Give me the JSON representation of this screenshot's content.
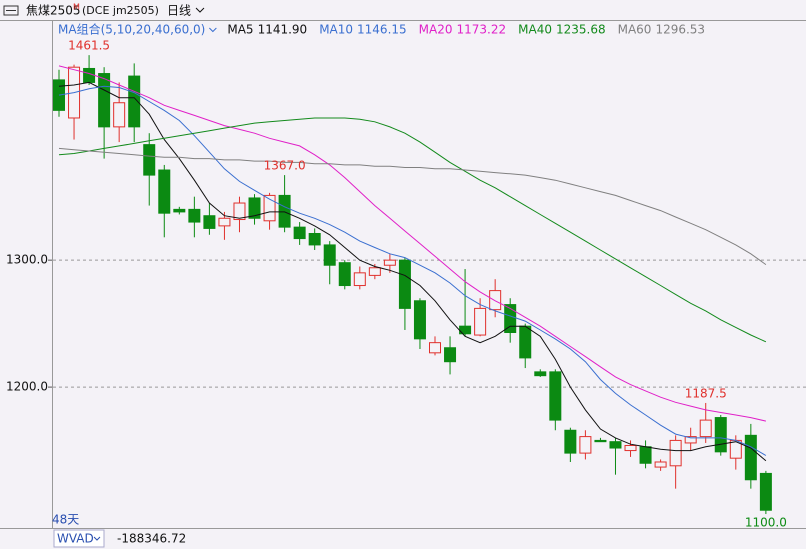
{
  "header": {
    "symbol": "焦煤2505",
    "badge": "M",
    "code": "(DCE jm2505)",
    "period": "日线"
  },
  "chart_data": {
    "type": "candlestick",
    "legend_title": "MA组合(5,10,20,40,60,0)",
    "open": [
      1442,
      1412,
      1451,
      1447,
      1405,
      1445,
      1391,
      1371,
      1340,
      1340,
      1335,
      1327,
      1332,
      1349,
      1331,
      1351,
      1326,
      1321,
      1312,
      1298,
      1280,
      1288,
      1296,
      1300,
      1268,
      1227,
      1231,
      1248,
      1241,
      1261,
      1265,
      1248,
      1212,
      1212,
      1166,
      1148,
      1158,
      1157,
      1150,
      1153,
      1137,
      1138,
      1156,
      1161,
      1176,
      1144,
      1162,
      1132
    ],
    "high": [
      1450,
      1454,
      1461.5,
      1452,
      1440,
      1455,
      1400,
      1375,
      1342,
      1350,
      1345,
      1338,
      1350,
      1352,
      1353,
      1367,
      1330,
      1325,
      1315,
      1300,
      1295,
      1297,
      1305,
      1302,
      1270,
      1240,
      1240,
      1293,
      1270,
      1285,
      1270,
      1250,
      1214,
      1214,
      1168,
      1166,
      1160,
      1160,
      1158,
      1158,
      1143,
      1162,
      1168,
      1187.5,
      1178,
      1162,
      1171,
      1134
    ],
    "low": [
      1413,
      1395,
      1438,
      1380,
      1393,
      1393,
      1343,
      1318,
      1336,
      1318,
      1320,
      1316,
      1322,
      1328,
      1324,
      1322,
      1312,
      1308,
      1281,
      1277,
      1277,
      1285,
      1290,
      1245,
      1230,
      1225,
      1210,
      1240,
      1240,
      1255,
      1235,
      1215,
      1208,
      1166,
      1141,
      1143,
      1157,
      1131,
      1145,
      1136,
      1134,
      1120,
      1150,
      1156,
      1146,
      1135,
      1120,
      1100
    ],
    "close": [
      1418,
      1452,
      1440,
      1405,
      1424,
      1405,
      1367,
      1337,
      1338,
      1330,
      1325,
      1333,
      1345,
      1333,
      1351,
      1326,
      1317,
      1312,
      1296,
      1280,
      1290,
      1294,
      1300,
      1262,
      1238,
      1235,
      1220,
      1242,
      1262,
      1276,
      1243,
      1223,
      1209,
      1174,
      1148,
      1161,
      1157,
      1152,
      1154,
      1140,
      1141,
      1158,
      1161,
      1174,
      1149,
      1158,
      1127,
      1103
    ],
    "up_color": "#e0302c",
    "down_color": "#0b8a12",
    "series": [
      {
        "name": "MA5",
        "color": "#111111",
        "legend_value": "1141.90",
        "values": [
          1437,
          1438,
          1440,
          1434,
          1428,
          1428,
          1415,
          1395,
          1380,
          1363,
          1345,
          1335,
          1333,
          1335,
          1338,
          1338,
          1333,
          1327,
          1320,
          1310,
          1300,
          1295,
          1292,
          1288,
          1280,
          1268,
          1253,
          1240,
          1235,
          1240,
          1248,
          1248,
          1240,
          1222,
          1200,
          1182,
          1167,
          1160,
          1155,
          1153,
          1151,
          1150,
          1150,
          1153,
          1155,
          1157,
          1152,
          1141.9
        ]
      },
      {
        "name": "MA10",
        "color": "#3a6fd0",
        "legend_value": "1146.15",
        "values": [
          1430,
          1432,
          1435,
          1437,
          1436,
          1432,
          1425,
          1418,
          1410,
          1398,
          1385,
          1372,
          1362,
          1355,
          1348,
          1342,
          1337,
          1333,
          1328,
          1322,
          1315,
          1310,
          1305,
          1302,
          1296,
          1290,
          1282,
          1272,
          1265,
          1260,
          1256,
          1252,
          1245,
          1238,
          1230,
          1220,
          1206,
          1195,
          1186,
          1178,
          1170,
          1163,
          1160,
          1160,
          1160,
          1158,
          1153,
          1146.15
        ]
      },
      {
        "name": "MA20",
        "color": "#e020c8",
        "legend_value": "1173.22",
        "values": [
          1453,
          1450,
          1447,
          1443,
          1438,
          1433,
          1428,
          1422,
          1418,
          1414,
          1410,
          1406,
          1403,
          1400,
          1396,
          1393,
          1390,
          1383,
          1375,
          1365,
          1354,
          1343,
          1333,
          1323,
          1313,
          1303,
          1293,
          1283,
          1275,
          1268,
          1262,
          1255,
          1248,
          1240,
          1232,
          1224,
          1216,
          1208,
          1202,
          1197,
          1192,
          1188,
          1185,
          1182,
          1180,
          1178,
          1176,
          1173.22
        ]
      },
      {
        "name": "MA40",
        "color": "#138a1c",
        "legend_value": "1235.68",
        "values": [
          1383,
          1384,
          1386,
          1388,
          1390,
          1392,
          1394,
          1396,
          1398,
          1400,
          1402,
          1404,
          1406,
          1408,
          1409,
          1410,
          1411,
          1412,
          1412,
          1412,
          1411,
          1409,
          1405,
          1400,
          1393,
          1385,
          1377,
          1370,
          1363,
          1357,
          1350,
          1343,
          1336,
          1329,
          1322,
          1315,
          1308,
          1301,
          1294,
          1287,
          1280,
          1273,
          1266,
          1260,
          1253,
          1247,
          1241,
          1235.68
        ]
      },
      {
        "name": "MA60",
        "color": "#808080",
        "legend_value": "1296.53",
        "values": [
          1388,
          1387,
          1386,
          1385,
          1384,
          1383,
          1382,
          1381,
          1381,
          1380,
          1380,
          1379,
          1379,
          1378,
          1378,
          1377,
          1377,
          1376,
          1376,
          1375,
          1375,
          1374,
          1374,
          1373,
          1373,
          1372,
          1372,
          1371,
          1370,
          1369,
          1368,
          1367,
          1365,
          1363,
          1360,
          1357,
          1354,
          1351,
          1347,
          1343,
          1339,
          1334,
          1329,
          1324,
          1318,
          1312,
          1305,
          1296.53
        ]
      }
    ],
    "annotations": [
      {
        "value": 1461.5,
        "label": "1461.5"
      },
      {
        "value": 1367,
        "label": "1367.0"
      },
      {
        "value": 1187.5,
        "label": "1187.5"
      },
      {
        "value": 1100,
        "label": "1100.0"
      }
    ],
    "ylim": [
      1089,
      1475
    ],
    "yticks": [
      {
        "value": 1200,
        "label": "1200.0"
      },
      {
        "value": 1300,
        "label": "1300.0"
      }
    ],
    "grid": true,
    "period_count_label": "48天"
  },
  "indicator": {
    "name": "WVAD",
    "value": -188346.72
  }
}
